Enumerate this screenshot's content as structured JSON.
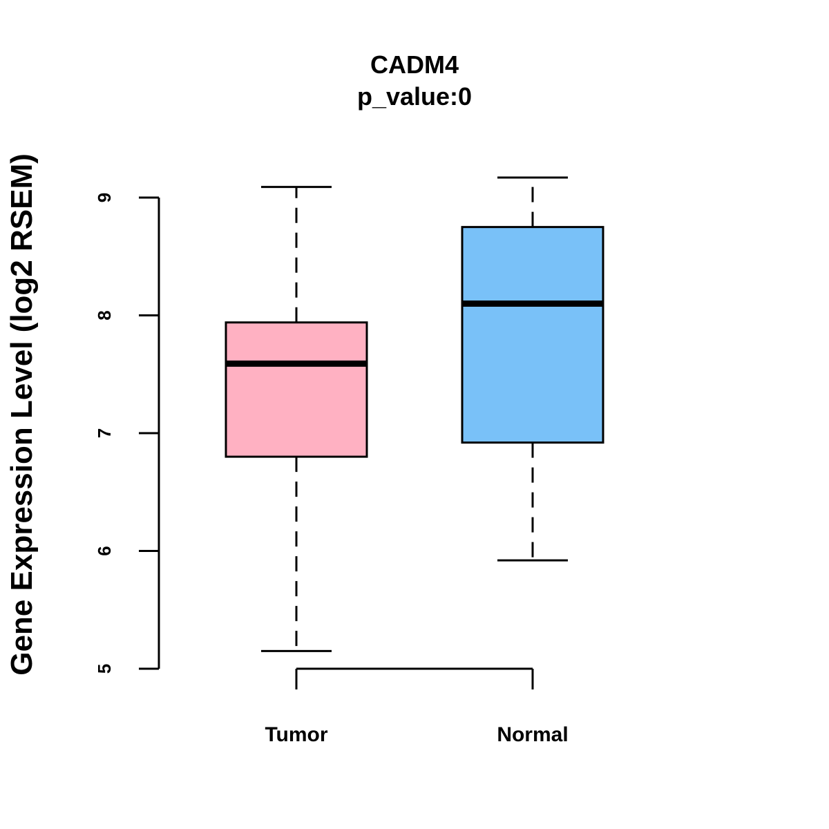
{
  "chart_data": {
    "type": "boxplot",
    "title": "CADM4",
    "subtitle": "p_value:0",
    "xlabel": "",
    "ylabel": "Gene Expression Level (log2 RSEM)",
    "ylim": [
      5,
      9
    ],
    "y_ticks": [
      5,
      6,
      7,
      8,
      9
    ],
    "y_tick_labels": [
      "5",
      "6",
      "7",
      "8",
      "9"
    ],
    "grid": false,
    "categories": [
      "Tumor",
      "Normal"
    ],
    "boxes": [
      {
        "name": "Tumor",
        "whisker_low": 5.15,
        "q1": 6.8,
        "median": 7.59,
        "q3": 7.94,
        "whisker_high": 9.09,
        "color": "#FFB1C2"
      },
      {
        "name": "Normal",
        "whisker_low": 5.92,
        "q1": 6.92,
        "median": 8.1,
        "q3": 8.75,
        "whisker_high": 9.17,
        "color": "#79C1F8"
      }
    ]
  }
}
